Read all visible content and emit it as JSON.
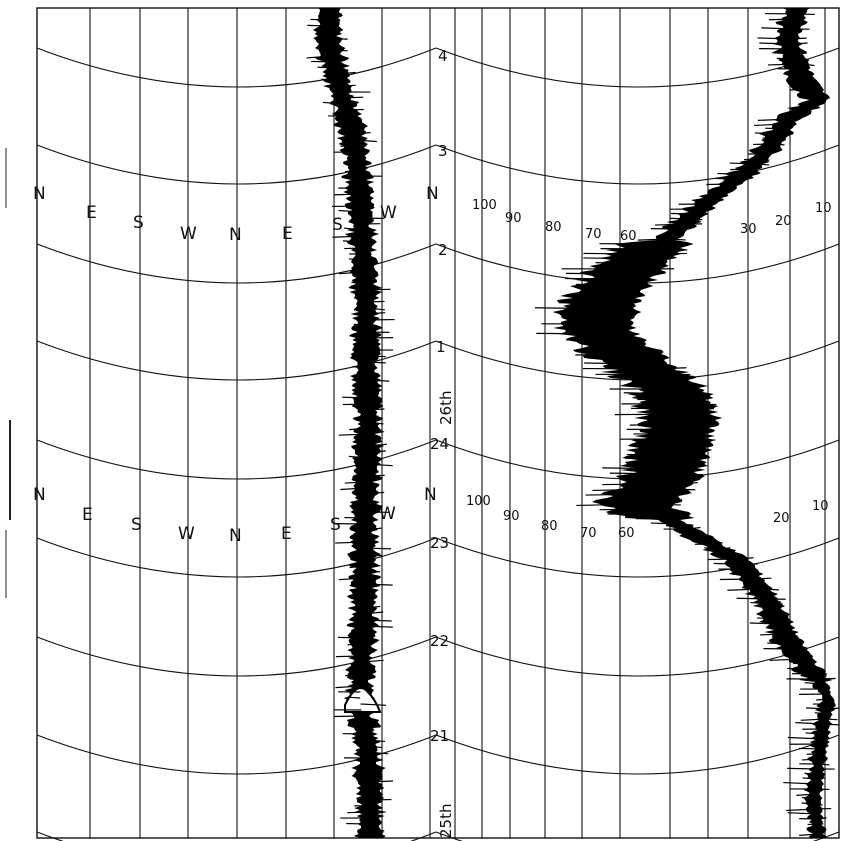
{
  "chart_data": [
    {
      "type": "line",
      "title": "",
      "variable": "wind direction",
      "direction_scale_upper": [
        "N",
        "E",
        "S",
        "W",
        "N",
        "E",
        "S",
        "W",
        "N"
      ],
      "direction_scale_lower": [
        "N",
        "E",
        "S",
        "W",
        "N",
        "E",
        "S",
        "W",
        "N"
      ],
      "time_labels": [
        "4",
        "3",
        "2",
        "1",
        "26th",
        "24",
        "23",
        "22",
        "21",
        "25th"
      ],
      "series": [
        {
          "x": [
            "25th 21h",
            "25th 22h",
            "25th 23h",
            "25th 24h",
            "26th 01h",
            "26th 02h",
            "26th 03h",
            "26th 04h"
          ],
          "values": [
            272,
            268,
            266,
            268,
            268,
            266,
            264,
            248
          ]
        }
      ]
    },
    {
      "type": "line",
      "title": "",
      "variable": "wind speed",
      "speed_scale_upper": [
        "100",
        "90",
        "80",
        "70",
        "60",
        "30",
        "20",
        "10"
      ],
      "speed_scale_lower": [
        "100",
        "90",
        "80",
        "70",
        "60",
        "20",
        "10"
      ],
      "ylim": [
        0,
        100
      ],
      "series": [
        {
          "x": [
            "25th 21h",
            "25th 22h",
            "25th 23h",
            "25th 24h",
            "26th 01h",
            "26th 02h",
            "26th 03h",
            "26th 04h"
          ],
          "values": [
            5,
            15,
            35,
            55,
            52,
            48,
            40,
            20
          ]
        }
      ]
    }
  ]
}
